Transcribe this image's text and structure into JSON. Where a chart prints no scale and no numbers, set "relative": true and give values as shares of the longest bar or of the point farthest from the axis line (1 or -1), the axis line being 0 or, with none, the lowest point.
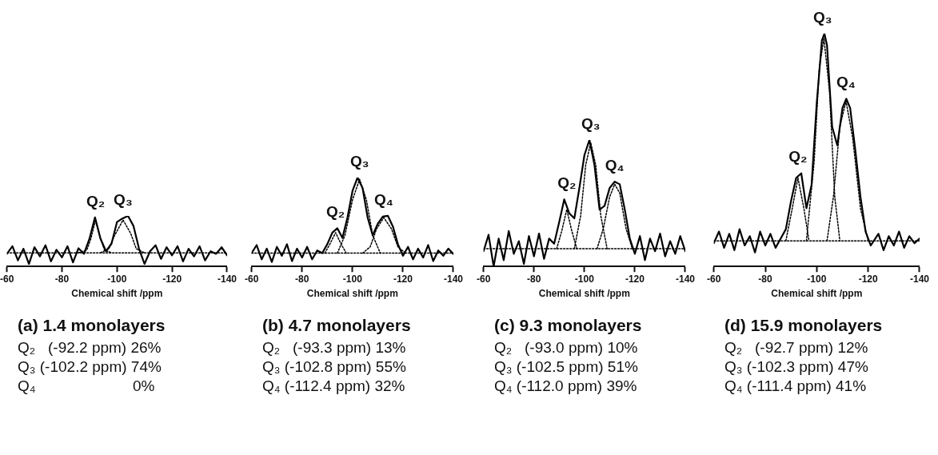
{
  "chart_data": [
    {
      "type": "line",
      "title": "(a) 1.4 monolayers",
      "xlabel": "Chemical shift /ppm",
      "xlim": [
        -60,
        -140
      ],
      "xticks": [
        -60,
        -80,
        -100,
        -120,
        -140
      ],
      "relative": true,
      "tick_labels": "x",
      "grid": false,
      "legend": false,
      "marker": "none",
      "series": [
        {
          "color": "#000000",
          "line_style": "solid",
          "x": [
            -60,
            -62,
            -64,
            -66,
            -68,
            -70,
            -72,
            -74,
            -76,
            -78,
            -80,
            -82,
            -84,
            -86,
            -88,
            -90,
            -92,
            -94,
            -96,
            -98,
            -100,
            -102,
            -104,
            -106,
            -108,
            -110,
            -112,
            -114,
            -116,
            -118,
            -120,
            -122,
            -124,
            -126,
            -128,
            -130,
            -132,
            -134,
            -136,
            -138,
            -140
          ],
          "values": [
            0.25,
            0.4,
            0.12,
            0.35,
            0.05,
            0.38,
            0.2,
            0.42,
            0.1,
            0.33,
            0.18,
            0.4,
            0.08,
            0.36,
            0.25,
            0.55,
            0.97,
            0.55,
            0.3,
            0.45,
            0.88,
            0.95,
            1.0,
            0.8,
            0.35,
            0.05,
            0.3,
            0.42,
            0.15,
            0.38,
            0.22,
            0.4,
            0.1,
            0.35,
            0.2,
            0.4,
            0.12,
            0.3,
            0.25,
            0.38,
            0.22
          ]
        },
        {
          "color": "#000000",
          "line_style": "dotted",
          "x": [
            -60,
            -140
          ],
          "values": [
            0.27,
            0.27
          ]
        },
        {
          "color": "#000000",
          "line_style": "dotted",
          "x": [
            -86,
            -89,
            -90.5,
            -92.2,
            -94,
            -95.5,
            -98
          ],
          "values": [
            0.27,
            0.32,
            0.55,
            0.92,
            0.55,
            0.32,
            0.27
          ]
        },
        {
          "color": "#000000",
          "line_style": "dotted",
          "x": [
            -94,
            -97,
            -99,
            -102.2,
            -105,
            -107,
            -110
          ],
          "values": [
            0.27,
            0.35,
            0.6,
            0.92,
            0.65,
            0.35,
            0.27
          ]
        }
      ],
      "annotations": [
        {
          "text": "Q₂",
          "x": -92.2,
          "y": 0.97
        },
        {
          "text": "Q₃",
          "x": -102.2,
          "y": 1.0
        },
        "Q₂   (-92.2 ppm) 26%",
        "Q₃ (-102.2 ppm) 74%",
        "Q₄                       0%"
      ]
    },
    {
      "type": "line",
      "title": "(b) 4.7 monolayers",
      "xlabel": "Chemical shift /ppm",
      "xlim": [
        -60,
        -140
      ],
      "xticks": [
        -60,
        -80,
        -100,
        -120,
        -140
      ],
      "relative": true,
      "tick_labels": "x",
      "grid": false,
      "legend": false,
      "marker": "none",
      "series": [
        {
          "color": "#000000",
          "line_style": "solid",
          "x": [
            -60,
            -62,
            -64,
            -66,
            -68,
            -70,
            -72,
            -74,
            -76,
            -78,
            -80,
            -82,
            -84,
            -86,
            -88,
            -90,
            -92,
            -94,
            -96,
            -98,
            -100,
            -102,
            -104,
            -106,
            -108,
            -110,
            -112,
            -114,
            -116,
            -118,
            -120,
            -122,
            -124,
            -126,
            -128,
            -130,
            -132,
            -134,
            -136,
            -138,
            -140
          ],
          "values": [
            0.15,
            0.24,
            0.08,
            0.2,
            0.05,
            0.22,
            0.12,
            0.25,
            0.06,
            0.2,
            0.1,
            0.22,
            0.08,
            0.18,
            0.15,
            0.25,
            0.38,
            0.43,
            0.32,
            0.55,
            0.85,
            1.0,
            0.88,
            0.55,
            0.35,
            0.48,
            0.56,
            0.57,
            0.45,
            0.25,
            0.12,
            0.22,
            0.08,
            0.2,
            0.1,
            0.24,
            0.06,
            0.18,
            0.12,
            0.2,
            0.14
          ]
        },
        {
          "color": "#000000",
          "line_style": "dotted",
          "x": [
            -60,
            -140
          ],
          "values": [
            0.15,
            0.15
          ]
        },
        {
          "color": "#000000",
          "line_style": "dotted",
          "x": [
            -89,
            -91,
            -93.3,
            -95.5,
            -97.5
          ],
          "values": [
            0.15,
            0.25,
            0.38,
            0.25,
            0.15
          ]
        },
        {
          "color": "#000000",
          "line_style": "dotted",
          "x": [
            -94,
            -97,
            -100,
            -102.8,
            -105.5,
            -108,
            -111
          ],
          "values": [
            0.15,
            0.35,
            0.75,
            0.98,
            0.75,
            0.35,
            0.15
          ]
        },
        {
          "color": "#000000",
          "line_style": "dotted",
          "x": [
            -104,
            -107,
            -109.5,
            -112.4,
            -115.5,
            -118,
            -121
          ],
          "values": [
            0.15,
            0.22,
            0.42,
            0.55,
            0.42,
            0.22,
            0.15
          ]
        }
      ],
      "annotations": [
        {
          "text": "Q₂",
          "x": -93.3,
          "y": 0.43
        },
        {
          "text": "Q₃",
          "x": -102.8,
          "y": 1.0
        },
        {
          "text": "Q₄",
          "x": -112.4,
          "y": 0.57
        },
        "Q₂   (-93.3 ppm) 13%",
        "Q₃ (-102.8 ppm) 55%",
        "Q₄ (-112.4 ppm) 32%"
      ]
    },
    {
      "type": "line",
      "title": "(c) 9.3 monolayers",
      "xlabel": "Chemical shift /ppm",
      "xlim": [
        -60,
        -140
      ],
      "xticks": [
        -60,
        -80,
        -100,
        -120,
        -140
      ],
      "relative": true,
      "tick_labels": "x",
      "grid": false,
      "legend": false,
      "marker": "none",
      "series": [
        {
          "color": "#000000",
          "line_style": "solid",
          "x": [
            -60,
            -62,
            -64,
            -66,
            -68,
            -70,
            -72,
            -74,
            -76,
            -78,
            -80,
            -82,
            -84,
            -86,
            -88,
            -90,
            -92,
            -94,
            -96,
            -98,
            -100,
            -102,
            -104,
            -106,
            -108,
            -110,
            -112,
            -114,
            -116,
            -118,
            -120,
            -122,
            -124,
            -126,
            -128,
            -130,
            -132,
            -134,
            -136,
            -138,
            -140
          ],
          "values": [
            0.12,
            0.25,
            0.0,
            0.22,
            0.05,
            0.28,
            0.1,
            0.2,
            0.02,
            0.24,
            0.08,
            0.26,
            0.06,
            0.22,
            0.18,
            0.35,
            0.53,
            0.42,
            0.38,
            0.62,
            0.88,
            1.0,
            0.8,
            0.45,
            0.48,
            0.62,
            0.67,
            0.65,
            0.45,
            0.22,
            0.1,
            0.24,
            0.05,
            0.22,
            0.12,
            0.26,
            0.08,
            0.2,
            0.1,
            0.24,
            0.12
          ]
        },
        {
          "color": "#000000",
          "line_style": "dotted",
          "x": [
            -60,
            -140
          ],
          "values": [
            0.14,
            0.14
          ]
        },
        {
          "color": "#000000",
          "line_style": "dotted",
          "x": [
            -89,
            -91,
            -93,
            -95,
            -97
          ],
          "values": [
            0.14,
            0.28,
            0.45,
            0.28,
            0.14
          ]
        },
        {
          "color": "#000000",
          "line_style": "dotted",
          "x": [
            -96,
            -98.5,
            -100.5,
            -102.5,
            -104.5,
            -106.5,
            -109
          ],
          "values": [
            0.14,
            0.4,
            0.8,
            0.98,
            0.8,
            0.4,
            0.14
          ]
        },
        {
          "color": "#000000",
          "line_style": "dotted",
          "x": [
            -105,
            -107.5,
            -110,
            -112,
            -114,
            -116.5,
            -119
          ],
          "values": [
            0.14,
            0.3,
            0.55,
            0.65,
            0.58,
            0.3,
            0.14
          ]
        }
      ],
      "annotations": [
        {
          "text": "Q₂",
          "x": -93.0,
          "y": 0.53
        },
        {
          "text": "Q₃",
          "x": -102.5,
          "y": 1.0
        },
        {
          "text": "Q₄",
          "x": -112.0,
          "y": 0.67
        },
        "Q₂   (-93.0 ppm) 10%",
        "Q₃ (-102.5 ppm) 51%",
        "Q₄ (-112.0 ppm) 39%"
      ]
    },
    {
      "type": "line",
      "title": "(d) 15.9 monolayers",
      "xlabel": "Chemical shift /ppm",
      "xlim": [
        -60,
        -140
      ],
      "xticks": [
        -60,
        -80,
        -100,
        -120,
        -140
      ],
      "relative": true,
      "tick_labels": "x",
      "grid": false,
      "legend": false,
      "marker": "none",
      "series": [
        {
          "color": "#000000",
          "line_style": "solid",
          "x": [
            -60,
            -62,
            -64,
            -66,
            -68,
            -70,
            -72,
            -74,
            -76,
            -78,
            -80,
            -82,
            -84,
            -86,
            -88,
            -90,
            -92,
            -94,
            -96,
            -98,
            -100,
            -102,
            -103,
            -104,
            -106,
            -108,
            -110,
            -111.5,
            -113,
            -115,
            -117,
            -119,
            -121,
            -124,
            -126,
            -128,
            -130,
            -132,
            -134,
            -136,
            -138,
            -140
          ],
          "values": [
            0.1,
            0.15,
            0.08,
            0.14,
            0.07,
            0.16,
            0.09,
            0.13,
            0.06,
            0.15,
            0.09,
            0.14,
            0.08,
            0.12,
            0.16,
            0.28,
            0.38,
            0.4,
            0.25,
            0.35,
            0.7,
            0.97,
            1.0,
            0.95,
            0.6,
            0.52,
            0.68,
            0.72,
            0.68,
            0.5,
            0.3,
            0.15,
            0.09,
            0.14,
            0.07,
            0.13,
            0.09,
            0.15,
            0.08,
            0.13,
            0.1,
            0.12
          ]
        },
        {
          "color": "#000000",
          "line_style": "dotted",
          "x": [
            -60,
            -140
          ],
          "values": [
            0.11,
            0.11
          ]
        },
        {
          "color": "#000000",
          "line_style": "dotted",
          "x": [
            -88,
            -90.5,
            -92.7,
            -95,
            -97
          ],
          "values": [
            0.11,
            0.25,
            0.38,
            0.25,
            0.11
          ]
        },
        {
          "color": "#000000",
          "line_style": "dotted",
          "x": [
            -96,
            -99,
            -101,
            -102.8,
            -105,
            -107,
            -109
          ],
          "values": [
            0.11,
            0.45,
            0.85,
            0.98,
            0.75,
            0.3,
            0.11
          ]
        },
        {
          "color": "#000000",
          "line_style": "dotted",
          "x": [
            -104,
            -106.5,
            -109,
            -111.4,
            -114,
            -117,
            -120
          ],
          "values": [
            0.11,
            0.3,
            0.6,
            0.71,
            0.55,
            0.25,
            0.11
          ]
        }
      ],
      "annotations": [
        {
          "text": "Q₂",
          "x": -92.7,
          "y": 0.4
        },
        {
          "text": "Q₃",
          "x": -102.3,
          "y": 1.0
        },
        {
          "text": "Q₄",
          "x": -111.4,
          "y": 0.72
        },
        "Q₂   (-92.7 ppm) 12%",
        "Q₃ (-102.3 ppm) 47%",
        "Q₄ (-111.4 ppm) 41%"
      ]
    }
  ]
}
